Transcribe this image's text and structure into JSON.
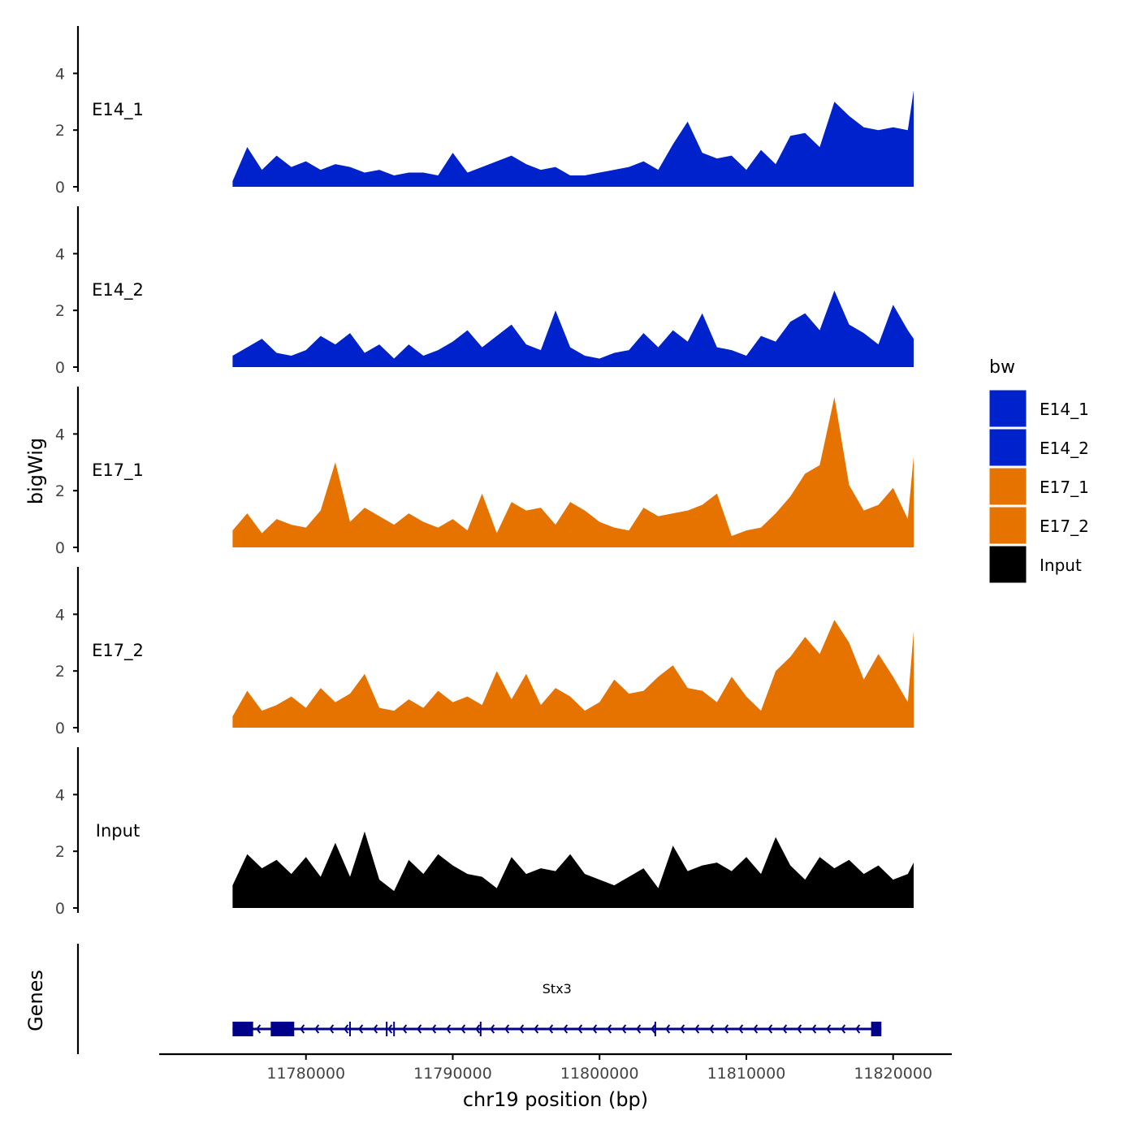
{
  "chart_data": {
    "type": "area",
    "y_axis_title": "bigWig",
    "genes_axis_title": "Genes",
    "xlabel": "chr19 position (bp)",
    "x_range": [
      11775000,
      11821500
    ],
    "x_axis_range": [
      11770000,
      11824000
    ],
    "x_ticks": [
      11780000,
      11790000,
      11800000,
      11810000,
      11820000
    ],
    "x_tick_labels": [
      "11780000",
      "11790000",
      "11800000",
      "11810000",
      "11820000"
    ],
    "y_range": [
      0,
      5.5
    ],
    "y_ticks": [
      0,
      2,
      4
    ],
    "y_tick_labels": [
      "0",
      "2",
      "4"
    ],
    "legend": {
      "title": "bw",
      "placement": "right",
      "entries": [
        {
          "label": "E14_1",
          "color": "#0022cc"
        },
        {
          "label": "E14_2",
          "color": "#0022cc"
        },
        {
          "label": "E17_1",
          "color": "#e67300"
        },
        {
          "label": "E17_2",
          "color": "#e67300"
        },
        {
          "label": "Input",
          "color": "#000000"
        }
      ]
    },
    "series": [
      {
        "name": "E14_1",
        "color": "#0022cc",
        "x": [
          11775000,
          11776000,
          11777000,
          11778000,
          11779000,
          11780000,
          11781000,
          11782000,
          11783000,
          11784000,
          11785000,
          11786000,
          11787000,
          11788000,
          11789000,
          11790000,
          11791000,
          11792000,
          11793000,
          11794000,
          11795000,
          11796000,
          11797000,
          11798000,
          11799000,
          11800000,
          11801000,
          11802000,
          11803000,
          11804000,
          11805000,
          11806000,
          11807000,
          11808000,
          11809000,
          11810000,
          11811000,
          11812000,
          11813000,
          11814000,
          11815000,
          11816000,
          11817000,
          11818000,
          11819000,
          11820000,
          11821000,
          11821400
        ],
        "values": [
          0.2,
          1.4,
          0.6,
          1.1,
          0.7,
          0.9,
          0.6,
          0.8,
          0.7,
          0.5,
          0.6,
          0.4,
          0.5,
          0.5,
          0.4,
          1.2,
          0.5,
          0.7,
          0.9,
          1.1,
          0.8,
          0.6,
          0.7,
          0.4,
          0.4,
          0.5,
          0.6,
          0.7,
          0.9,
          0.6,
          1.5,
          2.3,
          1.2,
          1.0,
          1.1,
          0.6,
          1.3,
          0.8,
          1.8,
          1.9,
          1.4,
          3.0,
          2.5,
          2.1,
          2.0,
          2.1,
          2.0,
          3.4
        ]
      },
      {
        "name": "E14_2",
        "color": "#0022cc",
        "x": [
          11775000,
          11776000,
          11777000,
          11778000,
          11779000,
          11780000,
          11781000,
          11782000,
          11783000,
          11784000,
          11785000,
          11786000,
          11787000,
          11788000,
          11789000,
          11790000,
          11791000,
          11792000,
          11793000,
          11794000,
          11795000,
          11796000,
          11797000,
          11798000,
          11799000,
          11800000,
          11801000,
          11802000,
          11803000,
          11804000,
          11805000,
          11806000,
          11807000,
          11808000,
          11809000,
          11810000,
          11811000,
          11812000,
          11813000,
          11814000,
          11815000,
          11816000,
          11817000,
          11818000,
          11819000,
          11820000,
          11821000,
          11821400
        ],
        "values": [
          0.4,
          0.7,
          1.0,
          0.5,
          0.4,
          0.6,
          1.1,
          0.8,
          1.2,
          0.5,
          0.8,
          0.3,
          0.8,
          0.4,
          0.6,
          0.9,
          1.3,
          0.7,
          1.1,
          1.5,
          0.8,
          0.6,
          2.0,
          0.7,
          0.4,
          0.3,
          0.5,
          0.6,
          1.2,
          0.7,
          1.3,
          0.9,
          1.9,
          0.7,
          0.6,
          0.4,
          1.1,
          0.9,
          1.6,
          1.9,
          1.3,
          2.7,
          1.5,
          1.2,
          0.8,
          2.2,
          1.3,
          1.0
        ]
      },
      {
        "name": "E17_1",
        "color": "#e67300",
        "x": [
          11775000,
          11776000,
          11777000,
          11778000,
          11779000,
          11780000,
          11781000,
          11782000,
          11783000,
          11784000,
          11785000,
          11786000,
          11787000,
          11788000,
          11789000,
          11790000,
          11791000,
          11792000,
          11793000,
          11794000,
          11795000,
          11796000,
          11797000,
          11798000,
          11799000,
          11800000,
          11801000,
          11802000,
          11803000,
          11804000,
          11805000,
          11806000,
          11807000,
          11808000,
          11809000,
          11810000,
          11811000,
          11812000,
          11813000,
          11814000,
          11815000,
          11816000,
          11817000,
          11818000,
          11819000,
          11820000,
          11821000,
          11821400
        ],
        "values": [
          0.6,
          1.2,
          0.5,
          1.0,
          0.8,
          0.7,
          1.3,
          3.0,
          0.9,
          1.4,
          1.1,
          0.8,
          1.2,
          0.9,
          0.7,
          1.0,
          0.6,
          1.9,
          0.5,
          1.6,
          1.3,
          1.4,
          0.8,
          1.6,
          1.3,
          0.9,
          0.7,
          0.6,
          1.4,
          1.1,
          1.2,
          1.3,
          1.5,
          1.9,
          0.4,
          0.6,
          0.7,
          1.2,
          1.8,
          2.6,
          2.9,
          5.3,
          2.2,
          1.3,
          1.5,
          2.1,
          1.0,
          3.2
        ]
      },
      {
        "name": "E17_2",
        "color": "#e67300",
        "x": [
          11775000,
          11776000,
          11777000,
          11778000,
          11779000,
          11780000,
          11781000,
          11782000,
          11783000,
          11784000,
          11785000,
          11786000,
          11787000,
          11788000,
          11789000,
          11790000,
          11791000,
          11792000,
          11793000,
          11794000,
          11795000,
          11796000,
          11797000,
          11798000,
          11799000,
          11800000,
          11801000,
          11802000,
          11803000,
          11804000,
          11805000,
          11806000,
          11807000,
          11808000,
          11809000,
          11810000,
          11811000,
          11812000,
          11813000,
          11814000,
          11815000,
          11816000,
          11817000,
          11818000,
          11819000,
          11820000,
          11821000,
          11821400
        ],
        "values": [
          0.4,
          1.3,
          0.6,
          0.8,
          1.1,
          0.7,
          1.4,
          0.9,
          1.2,
          1.9,
          0.7,
          0.6,
          1.0,
          0.7,
          1.3,
          0.9,
          1.1,
          0.8,
          2.0,
          1.0,
          1.9,
          0.8,
          1.4,
          1.1,
          0.6,
          0.9,
          1.7,
          1.2,
          1.3,
          1.8,
          2.2,
          1.4,
          1.3,
          0.9,
          1.8,
          1.1,
          0.6,
          2.0,
          2.5,
          3.2,
          2.6,
          3.8,
          3.0,
          1.7,
          2.6,
          1.8,
          0.9,
          3.4
        ]
      },
      {
        "name": "Input",
        "color": "#000000",
        "x": [
          11775000,
          11776000,
          11777000,
          11778000,
          11779000,
          11780000,
          11781000,
          11782000,
          11783000,
          11784000,
          11785000,
          11786000,
          11787000,
          11788000,
          11789000,
          11790000,
          11791000,
          11792000,
          11793000,
          11794000,
          11795000,
          11796000,
          11797000,
          11798000,
          11799000,
          11800000,
          11801000,
          11802000,
          11803000,
          11804000,
          11805000,
          11806000,
          11807000,
          11808000,
          11809000,
          11810000,
          11811000,
          11812000,
          11813000,
          11814000,
          11815000,
          11816000,
          11817000,
          11818000,
          11819000,
          11820000,
          11821000,
          11821400
        ],
        "values": [
          0.8,
          1.9,
          1.4,
          1.7,
          1.2,
          1.8,
          1.1,
          2.3,
          1.1,
          2.7,
          1.0,
          0.6,
          1.7,
          1.2,
          1.9,
          1.5,
          1.2,
          1.1,
          0.7,
          1.8,
          1.2,
          1.4,
          1.3,
          1.9,
          1.2,
          1.0,
          0.8,
          1.1,
          1.4,
          0.7,
          2.2,
          1.3,
          1.5,
          1.6,
          1.3,
          1.8,
          1.2,
          2.5,
          1.5,
          1.0,
          1.8,
          1.4,
          1.7,
          1.2,
          1.5,
          1.0,
          1.2,
          1.6
        ]
      }
    ],
    "genes": [
      {
        "name": "Stx3",
        "strand": "-",
        "start": 11775000,
        "end": 11819200,
        "exons": [
          [
            11775000,
            11776400
          ],
          [
            11777600,
            11779200
          ],
          [
            11818500,
            11819200
          ]
        ],
        "tick_marks": [
          11783000,
          11785500,
          11786000,
          11791900,
          11803800
        ]
      }
    ]
  }
}
